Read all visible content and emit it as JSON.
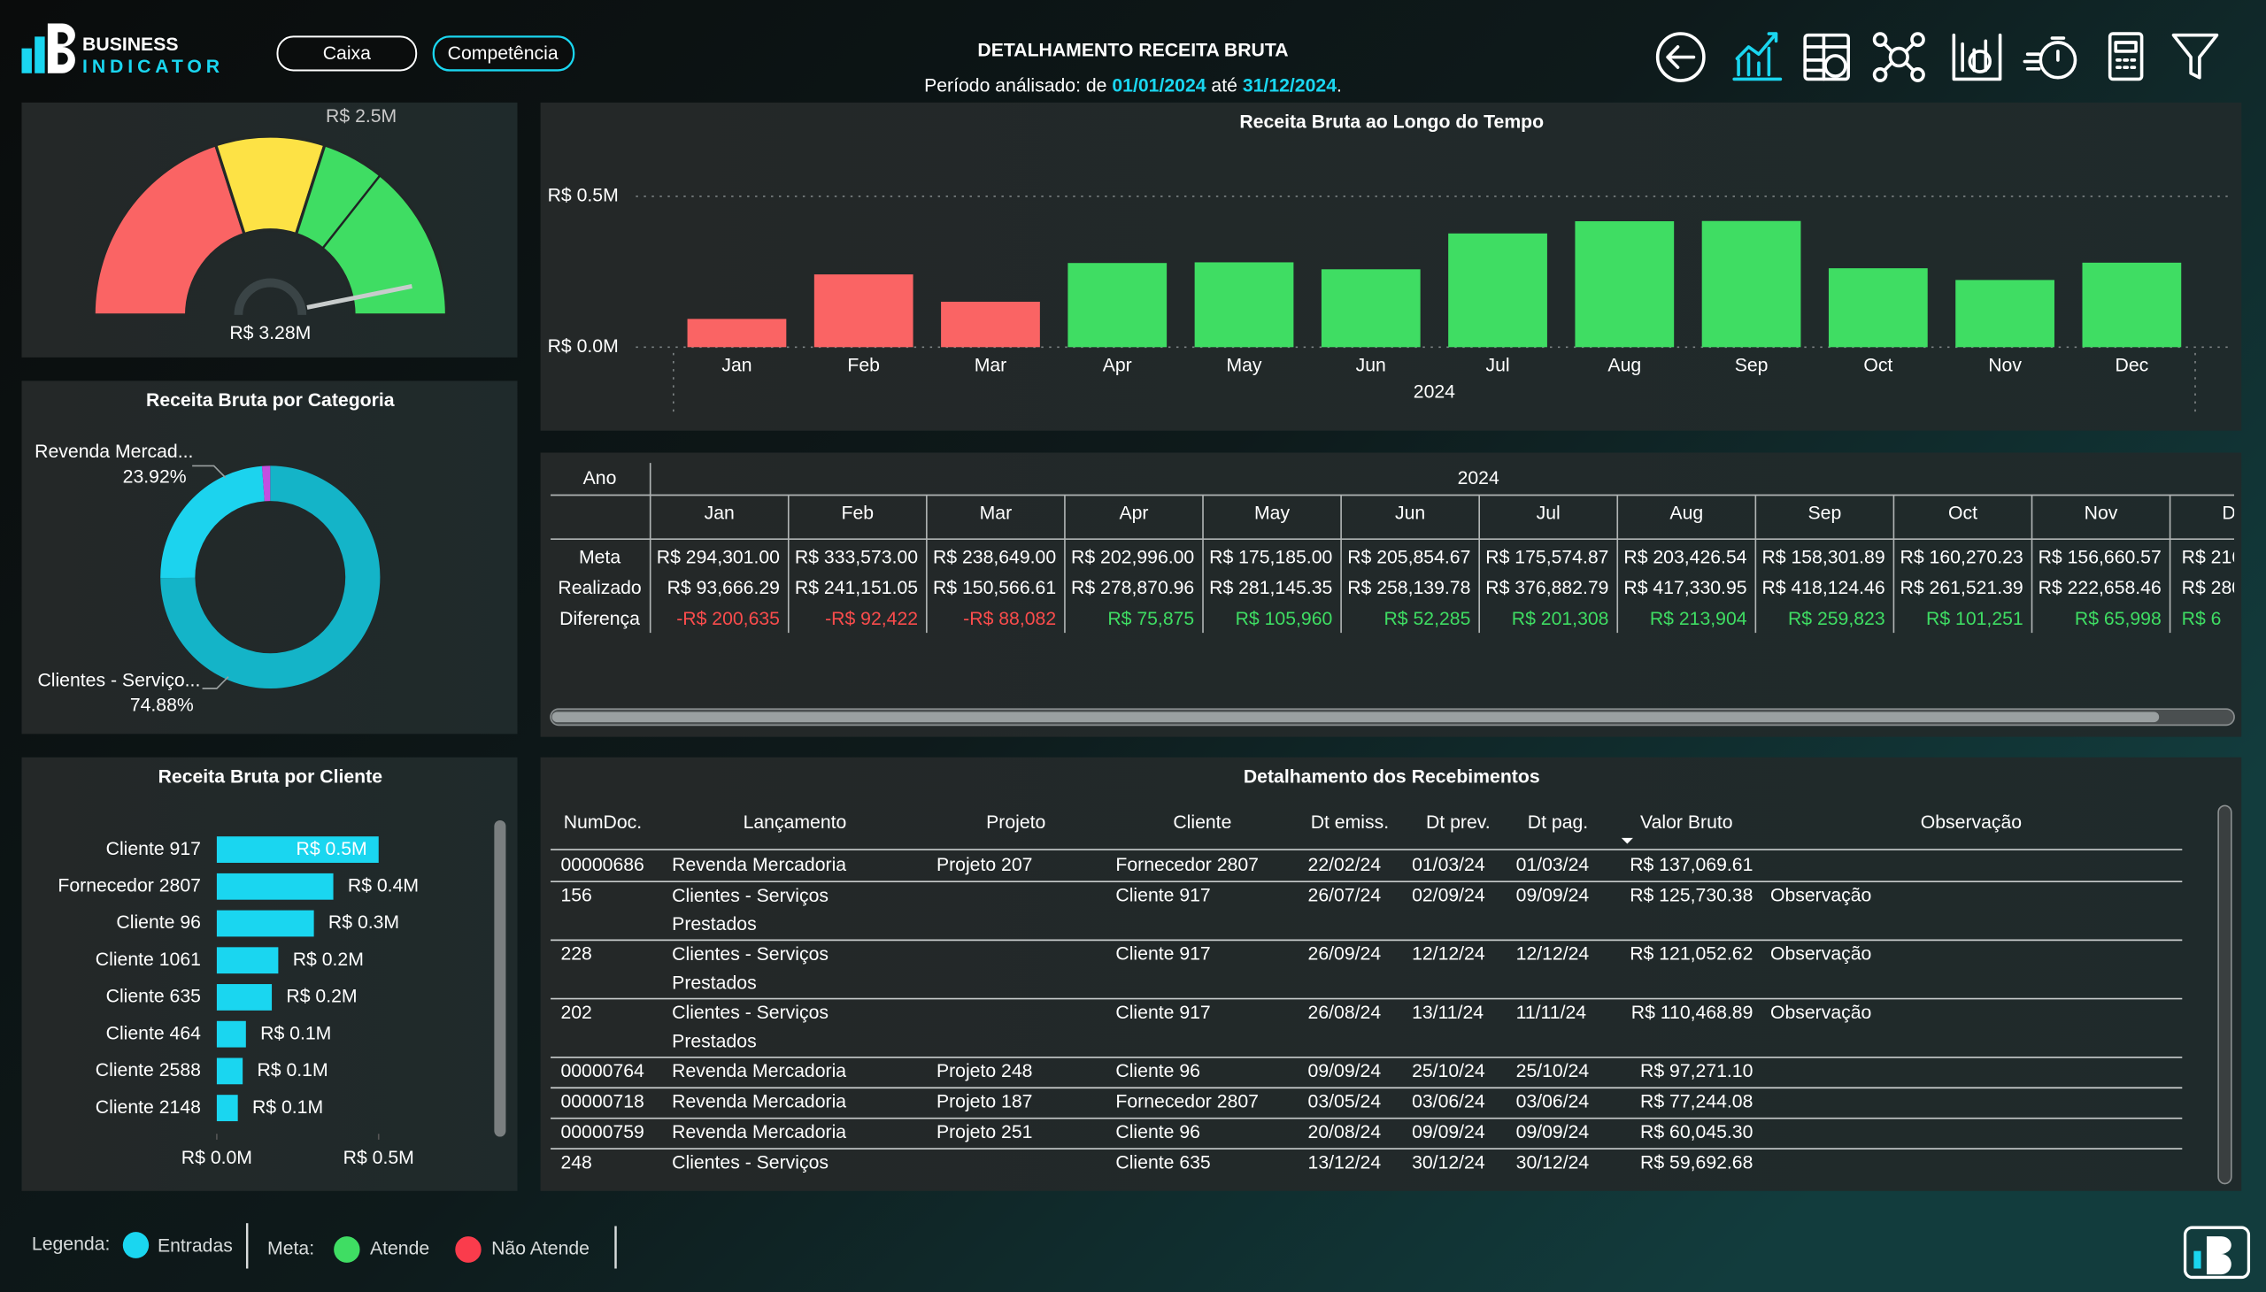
{
  "header": {
    "brand": "BUSINESS",
    "brand_sub": "INDICATOR",
    "buttons": [
      "Caixa",
      "Competência"
    ],
    "title": "DETALHAMENTO RECEITA BRUTA",
    "period_label": "Período análisado: de",
    "period_start": "01/01/2024",
    "period_joiner": "até",
    "period_end": "31/12/2024",
    "period_end_mark": "."
  },
  "chart_data": [
    {
      "type": "gauge",
      "value": 3280000,
      "value_label": "R$ 3.28M",
      "target": 2500000,
      "target_label": "R$ 2.5M",
      "ylim": [
        0,
        3500000
      ],
      "bands": [
        {
          "to": 1400000,
          "color": "#fa6464"
        },
        {
          "to": 2100000,
          "color": "#fde245"
        },
        {
          "to": 3500000,
          "color": "#3fdd63"
        }
      ]
    },
    {
      "type": "bar",
      "title": "Receita Bruta ao Longo do Tempo",
      "categories": [
        "Jan",
        "Feb",
        "Mar",
        "Apr",
        "May",
        "Jun",
        "Jul",
        "Aug",
        "Sep",
        "Oct",
        "Nov",
        "Dec"
      ],
      "x_group": "2024",
      "values": [
        93666.29,
        241151.05,
        150566.61,
        278870.96,
        281145.35,
        258139.78,
        376882.79,
        417330.95,
        418124.46,
        261521.39,
        222658.46,
        280000
      ],
      "colors": [
        "#fa6464",
        "#fa6464",
        "#fa6464",
        "#3fdd63",
        "#3fdd63",
        "#3fdd63",
        "#3fdd63",
        "#3fdd63",
        "#3fdd63",
        "#3fdd63",
        "#3fdd63",
        "#3fdd63"
      ],
      "ylim": [
        0,
        500000
      ],
      "yticks": [
        {
          "value": 0,
          "label": "R$ 0.0M"
        },
        {
          "value": 500000,
          "label": "R$ 0.5M"
        }
      ],
      "grid": true
    },
    {
      "type": "donut",
      "title": "Receita Bruta por Categoria",
      "categories": [
        "Clientes - Serviço...",
        "Revenda Mercad...",
        null
      ],
      "values": [
        74.88,
        23.92,
        1.2
      ],
      "value_labels": [
        "74.88%",
        "23.92%",
        null
      ],
      "colors": [
        "#14b4c8",
        "#1cd3ee",
        "#c34fe0"
      ]
    },
    {
      "type": "hbar",
      "title": "Receita Bruta por Cliente",
      "categories": [
        "Cliente 917",
        "Fornecedor 2807",
        "Cliente 96",
        "Cliente 1061",
        "Cliente 635",
        "Cliente 464",
        "Cliente 2588",
        "Cliente 2148"
      ],
      "values": [
        500000,
        360000,
        300000,
        190000,
        170000,
        90000,
        80000,
        65000
      ],
      "value_labels": [
        "R$ 0.5M",
        "R$ 0.4M",
        "R$ 0.3M",
        "R$ 0.2M",
        "R$ 0.2M",
        "R$ 0.1M",
        "R$ 0.1M",
        "R$ 0.1M"
      ],
      "color": "#1ad6f0",
      "xlim": [
        0,
        500000
      ],
      "xticks": [
        {
          "value": 0,
          "label": "R$ 0.0M"
        },
        {
          "value": 500000,
          "label": "R$ 0.5M"
        }
      ]
    }
  ],
  "matrix": {
    "corner": "Ano",
    "year": "2024",
    "columns": [
      "Jan",
      "Feb",
      "Mar",
      "Apr",
      "May",
      "Jun",
      "Jul",
      "Aug",
      "Sep",
      "Oct",
      "Nov",
      "D"
    ],
    "rows": [
      {
        "label": "Meta",
        "cells": [
          "R$ 294,301.00",
          "R$ 333,573.00",
          "R$ 238,649.00",
          "R$ 202,996.00",
          "R$ 175,185.00",
          "R$ 205,854.67",
          "R$ 175,574.87",
          "R$ 203,426.54",
          "R$ 158,301.89",
          "R$ 160,270.23",
          "R$ 156,660.57",
          "R$ 216"
        ]
      },
      {
        "label": "Realizado",
        "cells": [
          "R$ 93,666.29",
          "R$ 241,151.05",
          "R$ 150,566.61",
          "R$ 278,870.96",
          "R$ 281,145.35",
          "R$ 258,139.78",
          "R$ 376,882.79",
          "R$ 417,330.95",
          "R$ 418,124.46",
          "R$ 261,521.39",
          "R$ 222,658.46",
          "R$ 280"
        ]
      },
      {
        "label": "Diferença",
        "cells": [
          "-R$ 200,635",
          "-R$ 92,422",
          "-R$ 88,082",
          "R$ 75,875",
          "R$ 105,960",
          "R$ 52,285",
          "R$ 201,308",
          "R$ 213,904",
          "R$ 259,823",
          "R$ 101,251",
          "R$ 65,998",
          "R$ 6"
        ]
      }
    ]
  },
  "table": {
    "title": "Detalhamento dos Recebimentos",
    "columns": [
      "NumDoc.",
      "Lançamento",
      "Projeto",
      "Cliente",
      "Dt emiss.",
      "Dt prev.",
      "Dt pag.",
      "Valor Bruto",
      "Observação"
    ],
    "rows": [
      [
        "00000686",
        "Revenda Mercadoria",
        "Projeto 207",
        "Fornecedor 2807",
        "22/02/24",
        "01/03/24",
        "01/03/24",
        "R$ 137,069.61",
        null
      ],
      [
        "156",
        "Clientes - Serviços Prestados",
        null,
        "Cliente 917",
        "26/07/24",
        "02/09/24",
        "09/09/24",
        "R$ 125,730.38",
        "Observação"
      ],
      [
        "228",
        "Clientes - Serviços Prestados",
        null,
        "Cliente 917",
        "26/09/24",
        "12/12/24",
        "12/12/24",
        "R$ 121,052.62",
        "Observação"
      ],
      [
        "202",
        "Clientes - Serviços Prestados",
        null,
        "Cliente 917",
        "26/08/24",
        "13/11/24",
        "11/11/24",
        "R$ 110,468.89",
        "Observação"
      ],
      [
        "00000764",
        "Revenda Mercadoria",
        "Projeto 248",
        "Cliente 96",
        "09/09/24",
        "25/10/24",
        "25/10/24",
        "R$ 97,271.10",
        null
      ],
      [
        "00000718",
        "Revenda Mercadoria",
        "Projeto 187",
        "Fornecedor 2807",
        "03/05/24",
        "03/06/24",
        "03/06/24",
        "R$ 77,244.08",
        null
      ],
      [
        "00000759",
        "Revenda Mercadoria",
        "Projeto 251",
        "Cliente 96",
        "20/08/24",
        "09/09/24",
        "09/09/24",
        "R$ 60,045.30",
        null
      ],
      [
        "248",
        "Clientes - Serviços Prestados",
        null,
        "Cliente 635",
        "13/12/24",
        "30/12/24",
        "30/12/24",
        "R$ 59,692.68",
        null
      ]
    ]
  },
  "legend": {
    "label": "Legenda:",
    "items": [
      {
        "name": "Entradas",
        "color": "#1ad6f0"
      }
    ],
    "meta_label": "Meta:",
    "meta_items": [
      {
        "name": "Atende",
        "color": "#3fdd63"
      },
      {
        "name": "Não Atende",
        "color": "#fa3c4c"
      }
    ]
  }
}
